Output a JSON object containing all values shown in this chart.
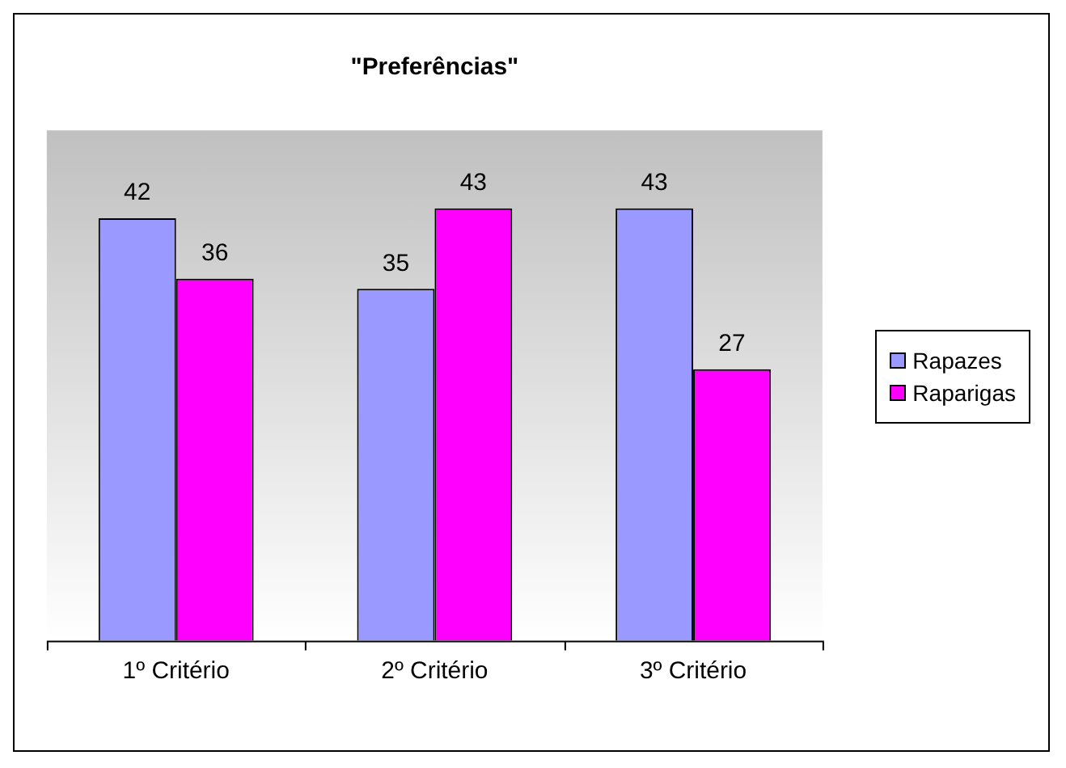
{
  "chart_data": {
    "type": "bar",
    "title": "\"Preferências\"",
    "categories": [
      "1º Critério",
      "2º Critério",
      "3º Critério"
    ],
    "series": [
      {
        "name": "Rapazes",
        "color": "#9999ff",
        "values": [
          42,
          35,
          43
        ]
      },
      {
        "name": "Raparigas",
        "color": "#ff00ff",
        "values": [
          36,
          43,
          27
        ]
      }
    ],
    "data_labels": true,
    "legend": "right"
  }
}
